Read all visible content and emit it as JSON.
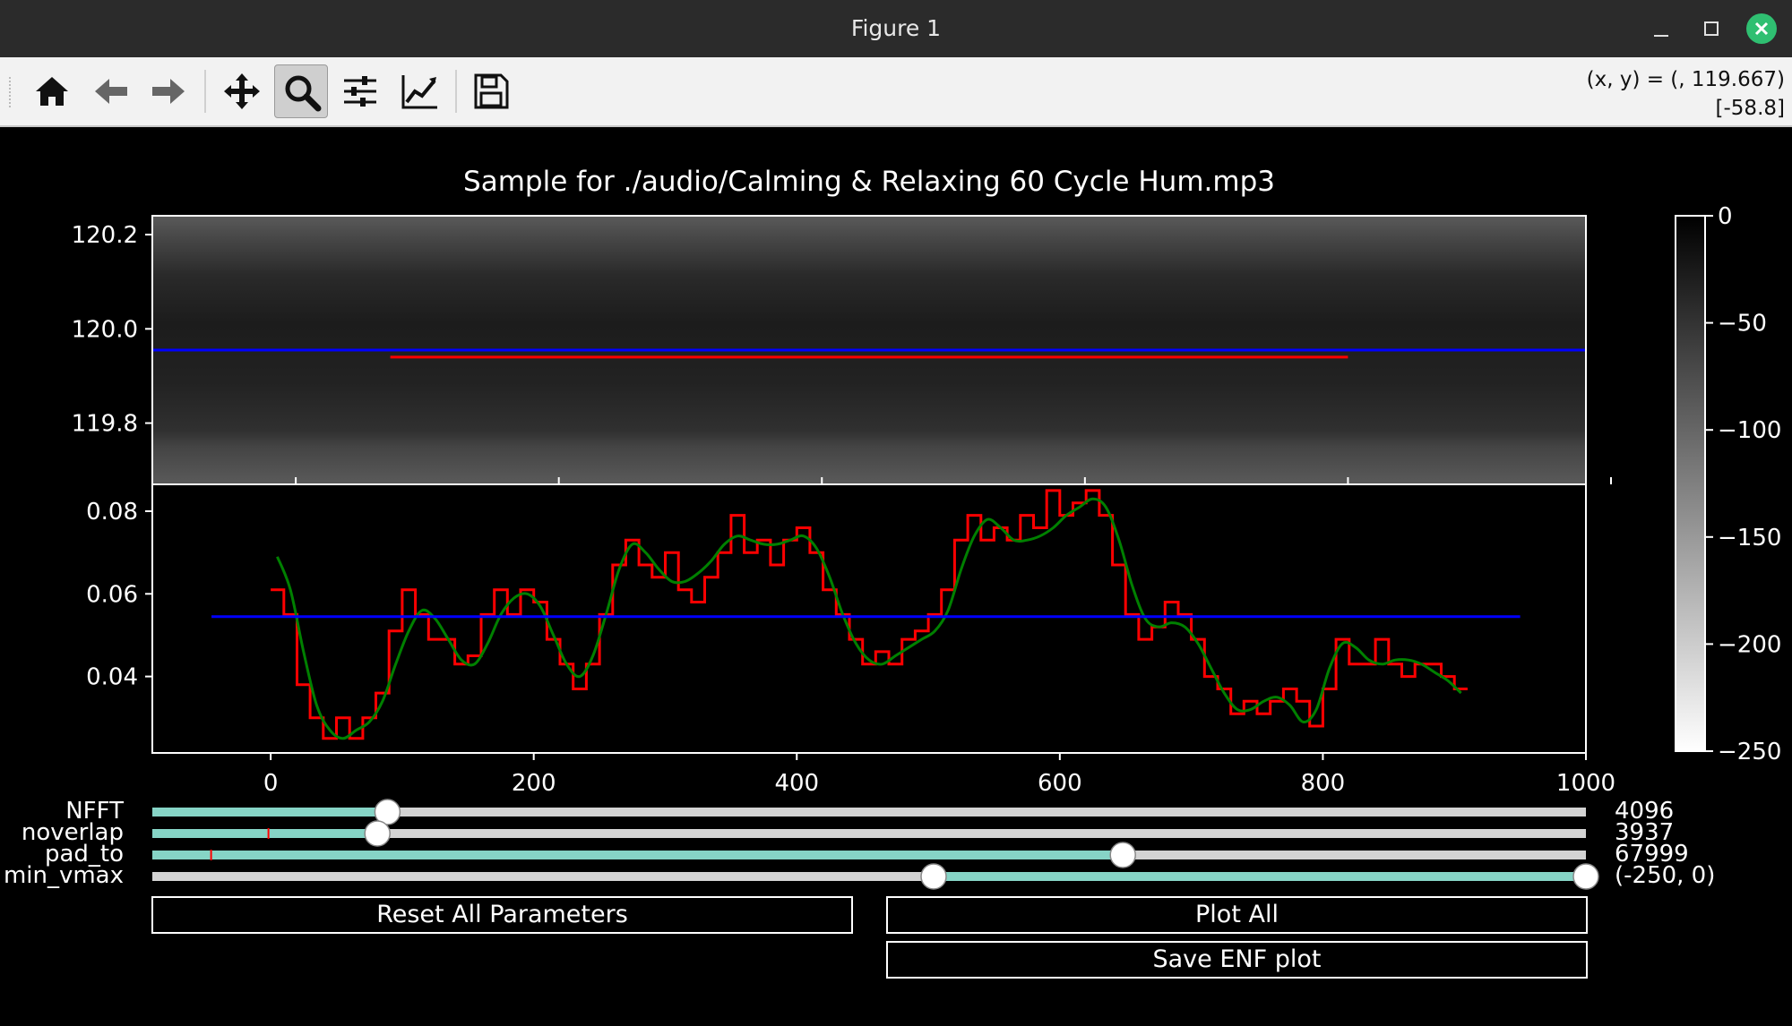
{
  "window": {
    "title": "Figure 1"
  },
  "toolbar": {
    "buttons": [
      {
        "name": "home-icon"
      },
      {
        "name": "back-icon"
      },
      {
        "name": "forward-icon"
      },
      {
        "name": "pan-icon"
      },
      {
        "name": "zoom-icon",
        "active": true
      },
      {
        "name": "configure-subplots-icon"
      },
      {
        "name": "edit-axis-icon"
      },
      {
        "name": "save-icon"
      }
    ],
    "coords_line1": "(x, y) = (, 119.667)",
    "coords_line2": "[-58.8]"
  },
  "figure": {
    "title": "Sample for ./audio/Calming & Relaxing 60 Cycle Hum.mp3"
  },
  "controls": {
    "nfft": {
      "label": "NFFT",
      "value_text": "4096",
      "fill": 0.164
    },
    "noverlap": {
      "label": "noverlap",
      "value_text": "3937",
      "fill": 0.157,
      "marker": 0.081
    },
    "pad_to": {
      "label": "pad_to",
      "value_text": "67999",
      "fill": 0.677,
      "marker": 0.041
    },
    "min_vmax": {
      "label": "min_vmax",
      "value_text": "(-250, 0)",
      "low": 0.545,
      "high": 1.0
    },
    "reset_button": "Reset All Parameters",
    "plot_all_button": "Plot All",
    "save_button": "Save ENF plot"
  },
  "colors": {
    "slider_fill": "#86d4c6",
    "slider_track": "#d3d3d3",
    "enf_raw": "#ff0000",
    "enf_smooth": "#008000",
    "mean_line": "#0000ff"
  },
  "chart_data": [
    {
      "type": "heatmap",
      "title": "Sample for ./audio/Calming & Relaxing 60 Cycle Hum.mp3",
      "ylim": [
        119.67,
        120.24
      ],
      "yticks": [
        120.2,
        120.0,
        119.8
      ],
      "ytick_labels": [
        "120.2",
        "120.0",
        "119.8"
      ],
      "hlines": [
        {
          "y": 119.955,
          "color": "#0000ff",
          "x_span": "full"
        },
        {
          "y": 119.94,
          "color": "#ff0000",
          "x_span": [
            0.166,
            0.834
          ]
        }
      ],
      "colorbar": {
        "range": [
          -250,
          0
        ],
        "ticks": [
          0,
          -50,
          -100,
          -150,
          -200,
          -250
        ],
        "tick_labels": [
          "0",
          "−50",
          "−100",
          "−150",
          "−200",
          "−250"
        ],
        "colormap": "gray"
      }
    },
    {
      "type": "line",
      "xlim": [
        -90,
        1000
      ],
      "ylim": [
        0.0215,
        0.0865
      ],
      "xticks": [
        0,
        200,
        400,
        600,
        800,
        1000
      ],
      "xtick_labels": [
        "0",
        "200",
        "400",
        "600",
        "800",
        "1000"
      ],
      "yticks": [
        0.08,
        0.06,
        0.04
      ],
      "ytick_labels": [
        "0.08",
        "0.06",
        "0.04"
      ],
      "series": [
        {
          "style": "step",
          "color": "#ff0000",
          "x": [
            5,
            15,
            25,
            35,
            45,
            55,
            65,
            75,
            85,
            95,
            105,
            115,
            125,
            135,
            145,
            155,
            165,
            175,
            185,
            195,
            205,
            215,
            225,
            235,
            245,
            255,
            265,
            275,
            285,
            295,
            305,
            315,
            325,
            335,
            345,
            355,
            365,
            375,
            385,
            395,
            405,
            415,
            425,
            435,
            445,
            455,
            465,
            475,
            485,
            495,
            505,
            515,
            525,
            535,
            545,
            555,
            565,
            575,
            585,
            595,
            605,
            615,
            625,
            635,
            645,
            655,
            665,
            675,
            685,
            695,
            705,
            715,
            725,
            735,
            745,
            755,
            765,
            775,
            785,
            795,
            805,
            815,
            825,
            835,
            845,
            855,
            865,
            875,
            885,
            895,
            905
          ],
          "y": [
            0.061,
            0.055,
            0.038,
            0.03,
            0.025,
            0.03,
            0.025,
            0.03,
            0.036,
            0.051,
            0.061,
            0.055,
            0.049,
            0.049,
            0.043,
            0.045,
            0.055,
            0.061,
            0.055,
            0.061,
            0.058,
            0.049,
            0.043,
            0.037,
            0.043,
            0.055,
            0.067,
            0.073,
            0.067,
            0.064,
            0.07,
            0.061,
            0.058,
            0.064,
            0.07,
            0.079,
            0.07,
            0.073,
            0.067,
            0.073,
            0.076,
            0.07,
            0.061,
            0.055,
            0.049,
            0.043,
            0.046,
            0.043,
            0.049,
            0.051,
            0.055,
            0.061,
            0.073,
            0.079,
            0.073,
            0.076,
            0.073,
            0.079,
            0.076,
            0.085,
            0.079,
            0.082,
            0.085,
            0.079,
            0.067,
            0.055,
            0.049,
            0.052,
            0.058,
            0.055,
            0.049,
            0.04,
            0.037,
            0.031,
            0.034,
            0.031,
            0.034,
            0.037,
            0.034,
            0.028,
            0.037,
            0.049,
            0.043,
            0.043,
            0.049,
            0.043,
            0.04,
            0.043,
            0.043,
            0.04,
            0.037
          ]
        },
        {
          "style": "smooth",
          "color": "#008000",
          "x": [
            5,
            15,
            25,
            35,
            45,
            55,
            65,
            75,
            85,
            95,
            105,
            115,
            125,
            135,
            145,
            155,
            165,
            175,
            185,
            195,
            205,
            215,
            225,
            235,
            245,
            255,
            265,
            275,
            285,
            295,
            305,
            315,
            325,
            335,
            345,
            355,
            365,
            375,
            385,
            395,
            405,
            415,
            425,
            435,
            445,
            455,
            465,
            475,
            485,
            495,
            505,
            515,
            525,
            535,
            545,
            555,
            565,
            575,
            585,
            595,
            605,
            615,
            625,
            635,
            645,
            655,
            665,
            675,
            685,
            695,
            705,
            715,
            725,
            735,
            745,
            755,
            765,
            775,
            785,
            795,
            805,
            815,
            825,
            835,
            845,
            855,
            865,
            875,
            885,
            895,
            905
          ],
          "y": [
            0.069,
            0.061,
            0.046,
            0.033,
            0.027,
            0.025,
            0.027,
            0.029,
            0.034,
            0.043,
            0.051,
            0.056,
            0.054,
            0.049,
            0.044,
            0.043,
            0.048,
            0.055,
            0.059,
            0.06,
            0.057,
            0.05,
            0.043,
            0.04,
            0.045,
            0.055,
            0.066,
            0.072,
            0.07,
            0.066,
            0.063,
            0.063,
            0.065,
            0.068,
            0.072,
            0.074,
            0.073,
            0.072,
            0.072,
            0.073,
            0.074,
            0.071,
            0.064,
            0.055,
            0.048,
            0.044,
            0.043,
            0.045,
            0.047,
            0.049,
            0.051,
            0.056,
            0.066,
            0.074,
            0.078,
            0.076,
            0.073,
            0.073,
            0.074,
            0.076,
            0.079,
            0.081,
            0.083,
            0.081,
            0.073,
            0.062,
            0.054,
            0.052,
            0.053,
            0.052,
            0.048,
            0.042,
            0.036,
            0.032,
            0.032,
            0.034,
            0.035,
            0.033,
            0.029,
            0.032,
            0.042,
            0.048,
            0.047,
            0.044,
            0.043,
            0.044,
            0.044,
            0.043,
            0.041,
            0.039,
            0.036
          ]
        },
        {
          "style": "hline",
          "color": "#0000ff",
          "x": [
            -45,
            950
          ],
          "y": [
            0.0545,
            0.0545
          ]
        }
      ]
    }
  ]
}
